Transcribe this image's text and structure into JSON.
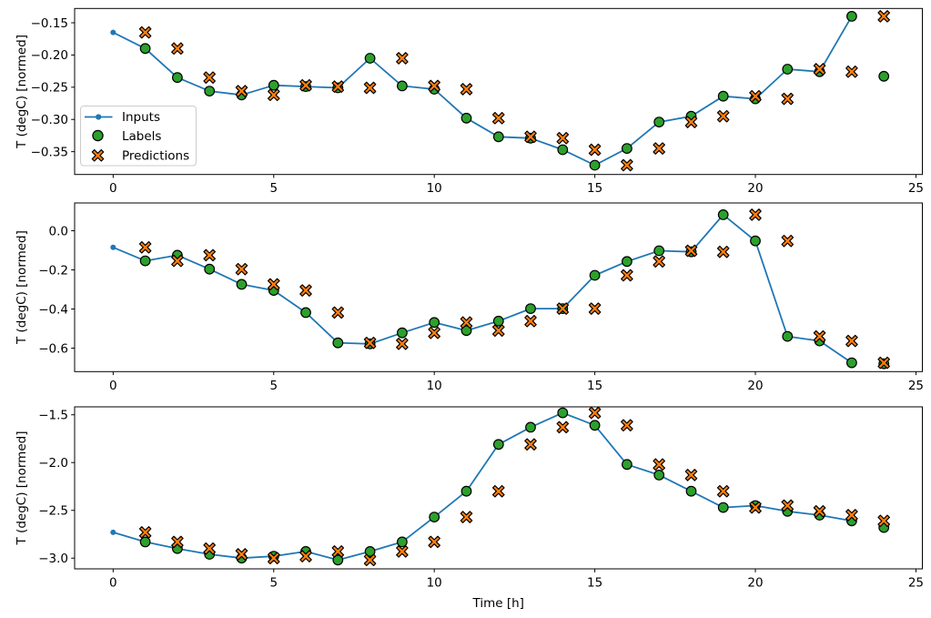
{
  "figure": {
    "xlabel": "Time [h]",
    "ylabel": "T (degC) [normed]",
    "colors": {
      "inputs": "#1f77b4",
      "labels": "#2ca02c",
      "predictions": "#ff7f0e",
      "marker_edge": "#000000",
      "legend_border": "#cccccc",
      "background": "#ffffff"
    },
    "legend": {
      "items": [
        {
          "label": "Inputs",
          "marker": "line-with-dot",
          "color": "#1f77b4"
        },
        {
          "label": "Labels",
          "marker": "filled-circle",
          "color": "#2ca02c"
        },
        {
          "label": "Predictions",
          "marker": "filled-x",
          "color": "#ff7f0e"
        }
      ]
    }
  },
  "chart_data": [
    {
      "type": "line+scatter",
      "subplot": 1,
      "ylabel": "T (degC) [normed]",
      "xlabel": "",
      "xlim": [
        -1.2,
        25.2
      ],
      "ylim": [
        -0.3854,
        -0.1278
      ],
      "x_ticks": [
        0,
        5,
        10,
        15,
        20,
        25
      ],
      "y_tick_values": [
        -0.15,
        -0.2,
        -0.25,
        -0.3,
        -0.35
      ],
      "y_tick_labels": [
        "−0.15",
        "−0.20",
        "−0.25",
        "−0.30",
        "−0.35"
      ],
      "grid": false,
      "legend_position": "center-left",
      "series": [
        {
          "name": "Inputs",
          "x": [
            0,
            1,
            2,
            3,
            4,
            5,
            6,
            7,
            8,
            9,
            10,
            11,
            12,
            13,
            14,
            15,
            16,
            17,
            18,
            19,
            20,
            21,
            22,
            23
          ],
          "y": [
            -0.165,
            -0.19,
            -0.235,
            -0.256,
            -0.262,
            -0.247,
            -0.249,
            -0.251,
            -0.205,
            -0.248,
            -0.253,
            -0.298,
            -0.327,
            -0.329,
            -0.347,
            -0.371,
            -0.345,
            -0.304,
            -0.295,
            -0.264,
            -0.268,
            -0.222,
            -0.226,
            -0.14
          ]
        },
        {
          "name": "Labels",
          "x": [
            1,
            2,
            3,
            4,
            5,
            6,
            7,
            8,
            9,
            10,
            11,
            12,
            13,
            14,
            15,
            16,
            17,
            18,
            19,
            20,
            21,
            22,
            23,
            24
          ],
          "y": [
            -0.19,
            -0.235,
            -0.256,
            -0.262,
            -0.247,
            -0.249,
            -0.251,
            -0.205,
            -0.248,
            -0.253,
            -0.298,
            -0.327,
            -0.329,
            -0.347,
            -0.371,
            -0.345,
            -0.304,
            -0.295,
            -0.264,
            -0.268,
            -0.222,
            -0.226,
            -0.14,
            -0.233
          ]
        },
        {
          "name": "Predictions",
          "x": [
            1,
            2,
            3,
            4,
            5,
            6,
            7,
            8,
            9,
            10,
            11,
            12,
            13,
            14,
            15,
            16,
            17,
            18,
            19,
            20,
            21,
            22,
            23,
            24
          ],
          "y": [
            -0.165,
            -0.19,
            -0.235,
            -0.256,
            -0.262,
            -0.247,
            -0.249,
            -0.251,
            -0.205,
            -0.248,
            -0.253,
            -0.298,
            -0.327,
            -0.329,
            -0.347,
            -0.371,
            -0.345,
            -0.304,
            -0.295,
            -0.264,
            -0.268,
            -0.222,
            -0.226,
            -0.14
          ]
        }
      ]
    },
    {
      "type": "line+scatter",
      "subplot": 2,
      "ylabel": "T (degC) [normed]",
      "xlabel": "",
      "xlim": [
        -1.2,
        25.2
      ],
      "ylim": [
        -0.72,
        0.142
      ],
      "x_ticks": [
        0,
        5,
        10,
        15,
        20,
        25
      ],
      "y_tick_values": [
        0.0,
        -0.2,
        -0.4,
        -0.6
      ],
      "y_tick_labels": [
        "0.0",
        "−0.2",
        "−0.4",
        "−0.6"
      ],
      "grid": false,
      "series": [
        {
          "name": "Inputs",
          "x": [
            0,
            1,
            2,
            3,
            4,
            5,
            6,
            7,
            8,
            9,
            10,
            11,
            12,
            13,
            14,
            15,
            16,
            17,
            18,
            19,
            20,
            21,
            22,
            23
          ],
          "y": [
            -0.085,
            -0.154,
            -0.125,
            -0.196,
            -0.274,
            -0.305,
            -0.418,
            -0.573,
            -0.578,
            -0.522,
            -0.469,
            -0.51,
            -0.462,
            -0.398,
            -0.398,
            -0.228,
            -0.157,
            -0.102,
            -0.108,
            0.082,
            -0.052,
            -0.54,
            -0.563,
            -0.675
          ]
        },
        {
          "name": "Labels",
          "x": [
            1,
            2,
            3,
            4,
            5,
            6,
            7,
            8,
            9,
            10,
            11,
            12,
            13,
            14,
            15,
            16,
            17,
            18,
            19,
            20,
            21,
            22,
            23,
            24
          ],
          "y": [
            -0.154,
            -0.125,
            -0.196,
            -0.274,
            -0.305,
            -0.418,
            -0.573,
            -0.578,
            -0.522,
            -0.469,
            -0.51,
            -0.462,
            -0.398,
            -0.398,
            -0.228,
            -0.157,
            -0.102,
            -0.108,
            0.082,
            -0.052,
            -0.54,
            -0.563,
            -0.675,
            -0.68
          ]
        },
        {
          "name": "Predictions",
          "x": [
            1,
            2,
            3,
            4,
            5,
            6,
            7,
            8,
            9,
            10,
            11,
            12,
            13,
            14,
            15,
            16,
            17,
            18,
            19,
            20,
            21,
            22,
            23,
            24
          ],
          "y": [
            -0.085,
            -0.154,
            -0.125,
            -0.196,
            -0.274,
            -0.305,
            -0.418,
            -0.573,
            -0.578,
            -0.522,
            -0.469,
            -0.51,
            -0.462,
            -0.398,
            -0.398,
            -0.228,
            -0.157,
            -0.102,
            -0.108,
            0.082,
            -0.052,
            -0.54,
            -0.563,
            -0.675
          ]
        }
      ]
    },
    {
      "type": "line+scatter",
      "subplot": 3,
      "ylabel": "T (degC) [normed]",
      "xlabel": "Time [h]",
      "xlim": [
        -1.2,
        25.2
      ],
      "ylim": [
        -3.112,
        -1.417
      ],
      "x_ticks": [
        0,
        5,
        10,
        15,
        20,
        25
      ],
      "y_tick_values": [
        -1.5,
        -2.0,
        -2.5,
        -3.0
      ],
      "y_tick_labels": [
        "−1.5",
        "−2.0",
        "−2.5",
        "−3.0"
      ],
      "grid": false,
      "series": [
        {
          "name": "Inputs",
          "x": [
            0,
            1,
            2,
            3,
            4,
            5,
            6,
            7,
            8,
            9,
            10,
            11,
            12,
            13,
            14,
            15,
            16,
            17,
            18,
            19,
            20,
            21,
            22,
            23
          ],
          "y": [
            -2.73,
            -2.83,
            -2.9,
            -2.96,
            -3.0,
            -2.98,
            -2.93,
            -3.02,
            -2.93,
            -2.83,
            -2.57,
            -2.3,
            -1.81,
            -1.63,
            -1.48,
            -1.61,
            -2.02,
            -2.13,
            -2.3,
            -2.47,
            -2.45,
            -2.51,
            -2.55,
            -2.61
          ]
        },
        {
          "name": "Labels",
          "x": [
            1,
            2,
            3,
            4,
            5,
            6,
            7,
            8,
            9,
            10,
            11,
            12,
            13,
            14,
            15,
            16,
            17,
            18,
            19,
            20,
            21,
            22,
            23,
            24
          ],
          "y": [
            -2.83,
            -2.9,
            -2.96,
            -3.0,
            -2.98,
            -2.93,
            -3.02,
            -2.93,
            -2.83,
            -2.57,
            -2.3,
            -1.81,
            -1.63,
            -1.48,
            -1.61,
            -2.02,
            -2.13,
            -2.3,
            -2.47,
            -2.45,
            -2.51,
            -2.55,
            -2.61,
            -2.68
          ]
        },
        {
          "name": "Predictions",
          "x": [
            1,
            2,
            3,
            4,
            5,
            6,
            7,
            8,
            9,
            10,
            11,
            12,
            13,
            14,
            15,
            16,
            17,
            18,
            19,
            20,
            21,
            22,
            23,
            24
          ],
          "y": [
            -2.73,
            -2.83,
            -2.9,
            -2.96,
            -3.0,
            -2.98,
            -2.93,
            -3.02,
            -2.93,
            -2.83,
            -2.57,
            -2.3,
            -1.81,
            -1.63,
            -1.48,
            -1.61,
            -2.02,
            -2.13,
            -2.3,
            -2.47,
            -2.45,
            -2.51,
            -2.55,
            -2.61
          ]
        }
      ]
    }
  ]
}
